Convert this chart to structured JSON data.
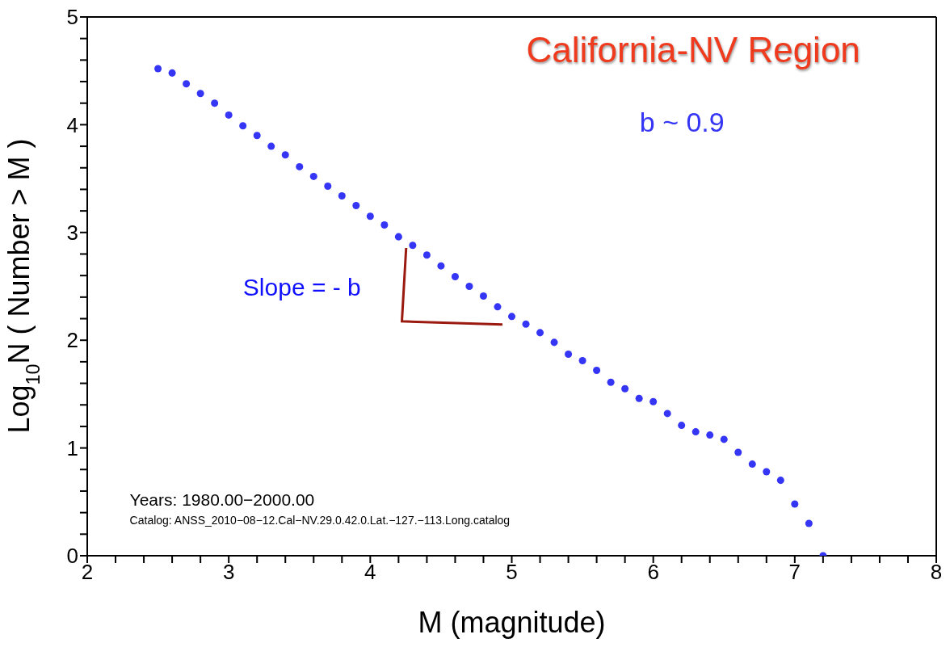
{
  "chart_data": {
    "type": "scatter",
    "xlabel": "M (magnitude)",
    "ylabel": "Log$_{10}$N ( Number > M )",
    "annotations": [
      "California-NV Region",
      "b ~ 0.9",
      "Slope = - b",
      "Years:  1980.00−2000.00",
      "Catalog: ANSS_2010−08−12.Cal−NV.29.0.42.0.Lat.−127.−113.Long.catalog"
    ],
    "x": [
      2.5,
      2.6,
      2.7,
      2.8,
      2.9,
      3.0,
      3.1,
      3.2,
      3.3,
      3.4,
      3.5,
      3.6,
      3.7,
      3.8,
      3.9,
      4.0,
      4.1,
      4.2,
      4.3,
      4.4,
      4.5,
      4.6,
      4.7,
      4.8,
      4.9,
      5.0,
      5.1,
      5.2,
      5.3,
      5.4,
      5.5,
      5.6,
      5.7,
      5.8,
      5.9,
      6.0,
      6.1,
      6.2,
      6.3,
      6.4,
      6.5,
      6.6,
      6.7,
      6.8,
      6.9,
      7.0,
      7.1,
      7.2
    ],
    "series": [
      {
        "color": "#3535f5",
        "values": [
          4.52,
          4.48,
          4.38,
          4.29,
          4.2,
          4.09,
          3.99,
          3.9,
          3.8,
          3.72,
          3.61,
          3.52,
          3.43,
          3.34,
          3.25,
          3.15,
          3.07,
          2.96,
          2.88,
          2.79,
          2.69,
          2.59,
          2.5,
          2.41,
          2.31,
          2.22,
          2.15,
          2.07,
          1.98,
          1.87,
          1.81,
          1.72,
          1.61,
          1.55,
          1.46,
          1.43,
          1.32,
          1.21,
          1.15,
          1.12,
          1.08,
          0.96,
          0.85,
          0.78,
          0.7,
          0.48,
          0.3,
          0.0
        ]
      }
    ],
    "marker": "circle",
    "grid": false,
    "legend": false,
    "xlim": [
      2,
      8
    ],
    "ylim": [
      0,
      5
    ],
    "xticks": [
      2,
      {
        "value": 2.2,
        "label": null
      },
      {
        "value": 2.4,
        "label": null
      },
      {
        "value": 2.6,
        "label": null
      },
      {
        "value": 2.8,
        "label": null
      },
      3,
      {
        "value": 3.2,
        "label": null
      },
      {
        "value": 3.4,
        "label": null
      },
      {
        "value": 3.6,
        "label": null
      },
      {
        "value": 3.8,
        "label": null
      },
      4,
      {
        "value": 4.2,
        "label": null
      },
      {
        "value": 4.4,
        "label": null
      },
      {
        "value": 4.6,
        "label": null
      },
      {
        "value": 4.8,
        "label": null
      },
      5,
      {
        "value": 5.2,
        "label": null
      },
      {
        "value": 5.4,
        "label": null
      },
      {
        "value": 5.6,
        "label": null
      },
      {
        "value": 5.8,
        "label": null
      },
      6,
      {
        "value": 6.2,
        "label": null
      },
      {
        "value": 6.4,
        "label": null
      },
      {
        "value": 6.6,
        "label": null
      },
      {
        "value": 6.8,
        "label": null
      },
      7,
      {
        "value": 7.2,
        "label": null
      },
      {
        "value": 7.4,
        "label": null
      },
      {
        "value": 7.6,
        "label": null
      },
      {
        "value": 7.8,
        "label": null
      },
      8
    ],
    "yticks": [
      0,
      {
        "value": 0.2,
        "label": null
      },
      {
        "value": 0.4,
        "label": null
      },
      {
        "value": 0.6,
        "label": null
      },
      {
        "value": 0.8,
        "label": null
      },
      1,
      {
        "value": 1.2,
        "label": null
      },
      {
        "value": 1.4,
        "label": null
      },
      {
        "value": 1.6,
        "label": null
      },
      {
        "value": 1.8,
        "label": null
      },
      2,
      {
        "value": 2.2,
        "label": null
      },
      {
        "value": 2.4,
        "label": null
      },
      {
        "value": 2.6,
        "label": null
      },
      {
        "value": 2.8,
        "label": null
      },
      3,
      {
        "value": 3.2,
        "label": null
      },
      {
        "value": 3.4,
        "label": null
      },
      {
        "value": 3.6,
        "label": null
      },
      {
        "value": 3.8,
        "label": null
      },
      4,
      {
        "value": 4.2,
        "label": null
      },
      {
        "value": 4.4,
        "label": null
      },
      {
        "value": 4.6,
        "label": null
      },
      {
        "value": 4.8,
        "label": null
      },
      5
    ]
  }
}
